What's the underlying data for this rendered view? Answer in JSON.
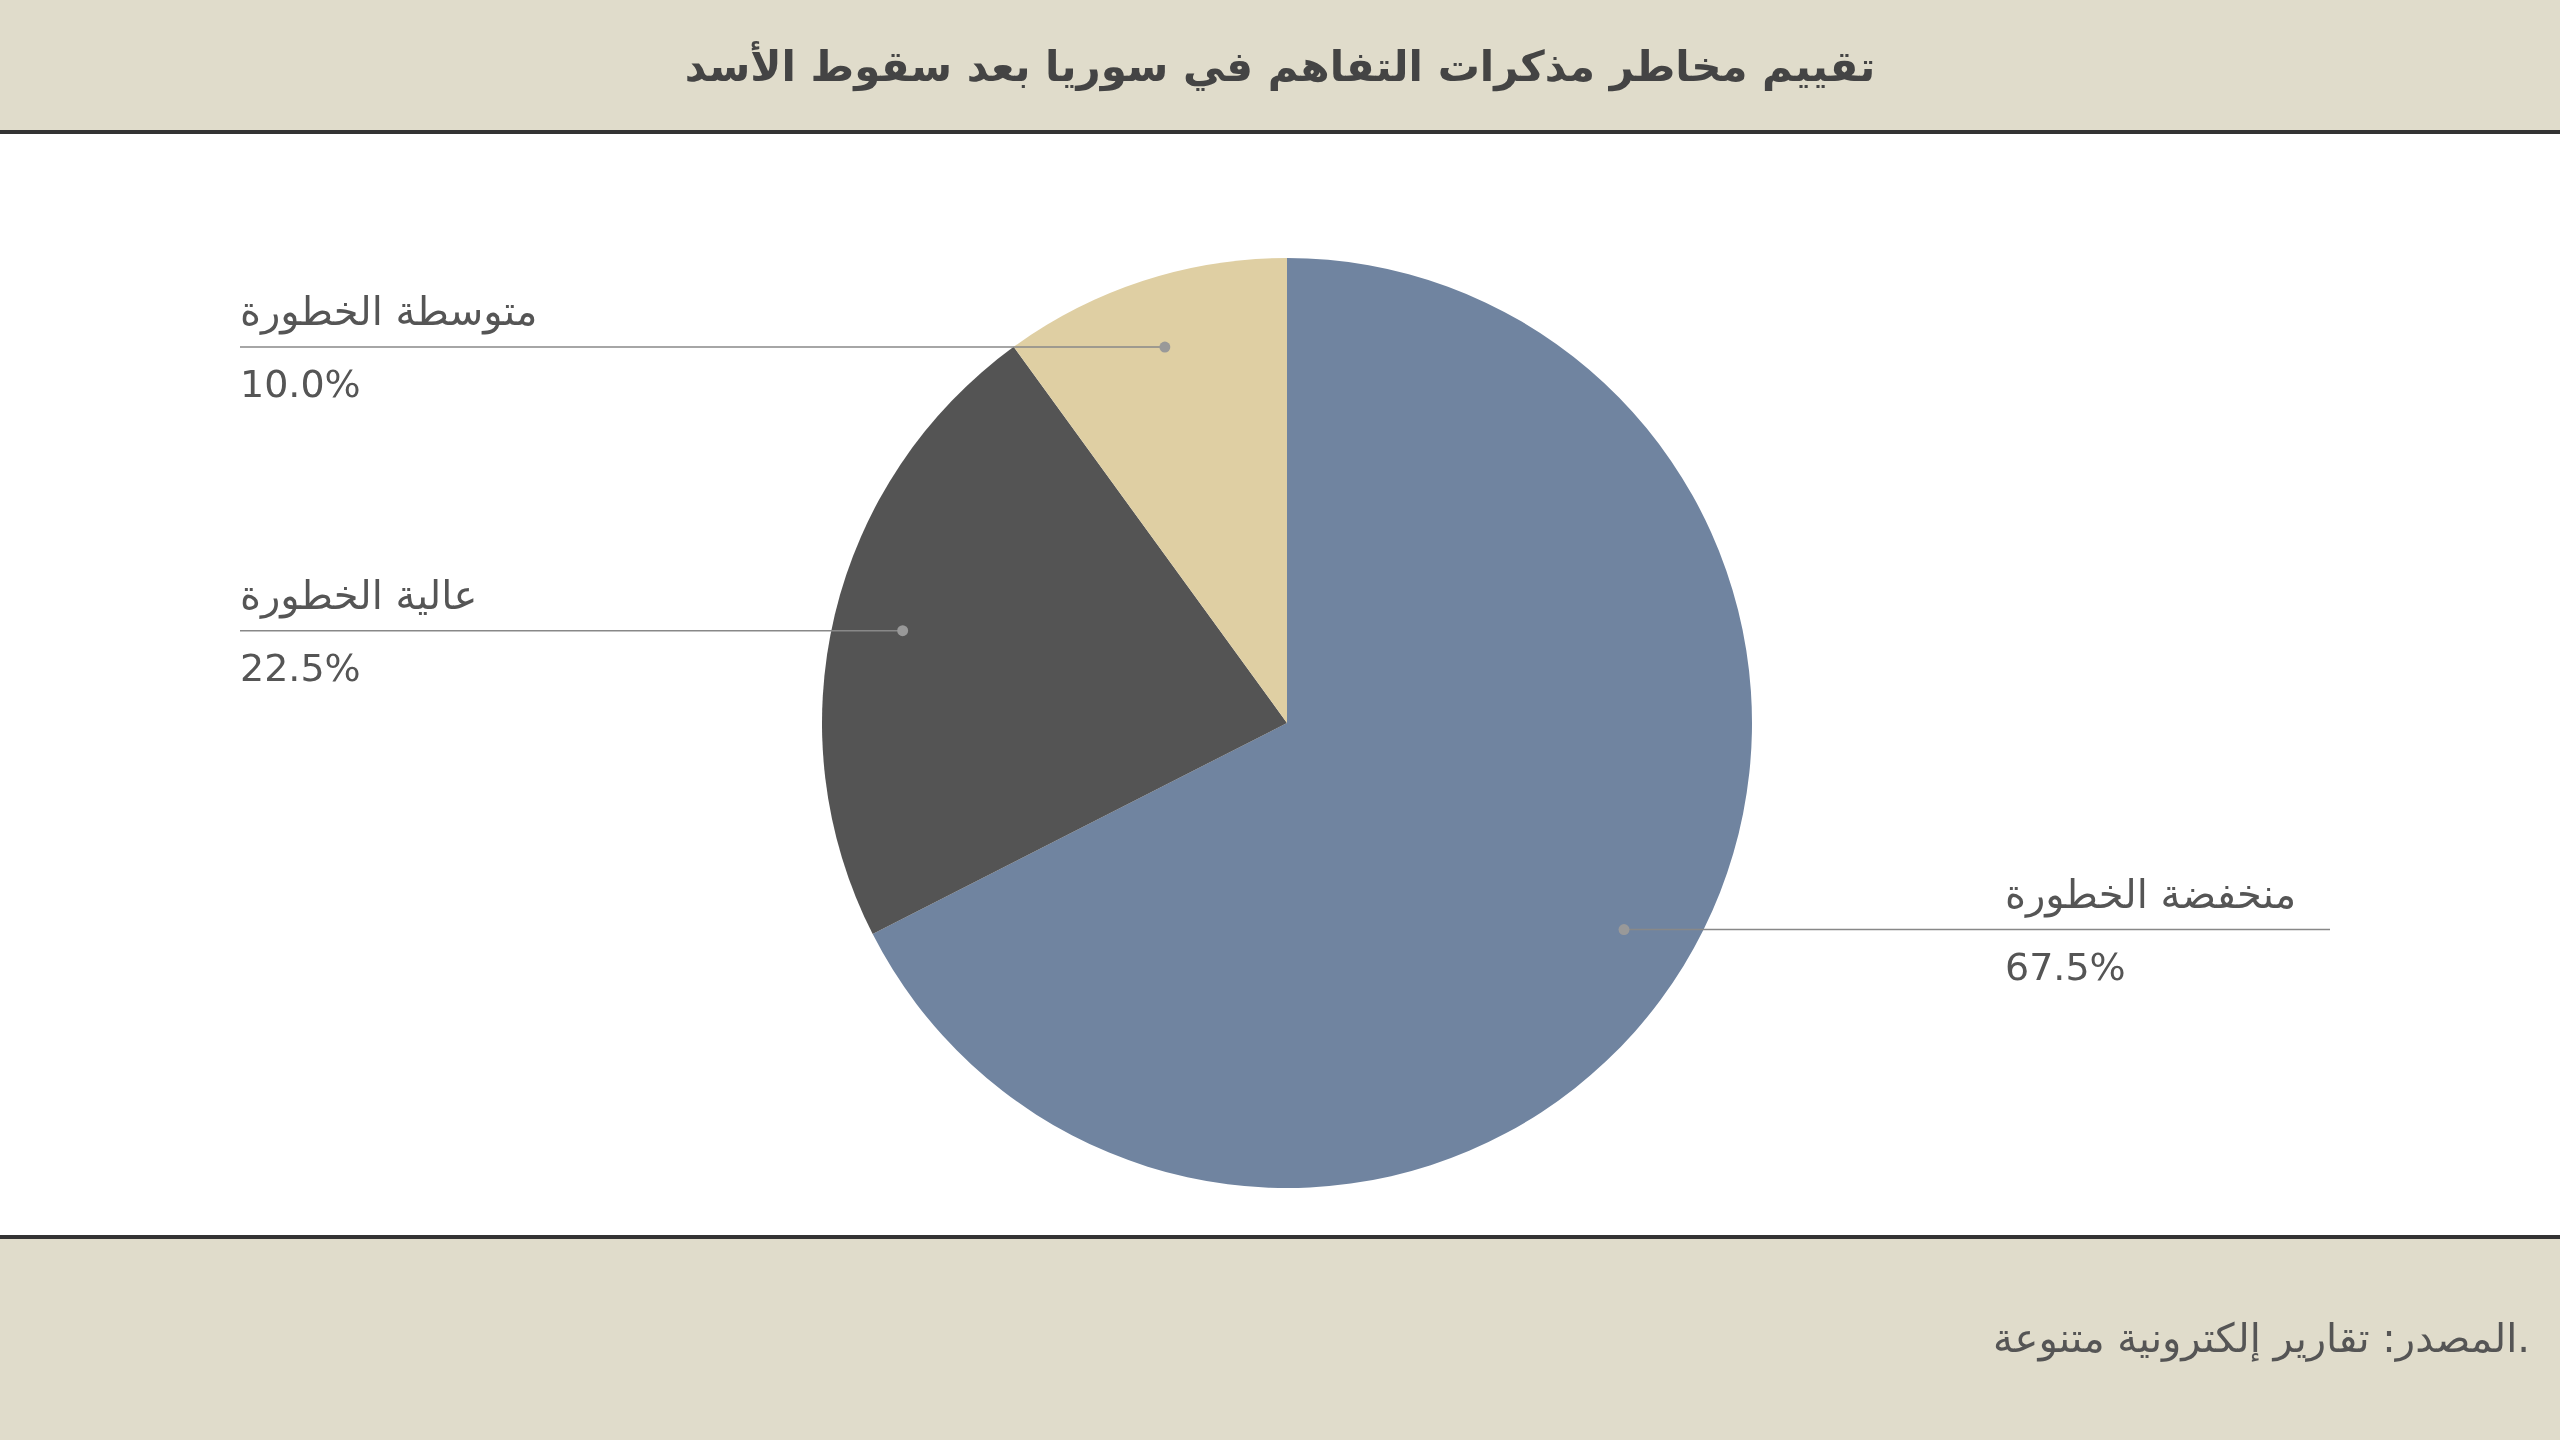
{
  "chart_data": {
    "type": "pie",
    "title": "تقييم مخاطر مذكرات التفاهم في سوريا بعد سقوط الأسد",
    "categories": [
      "منخفضة الخطورة",
      "عالية الخطورة",
      "متوسطة الخطورة"
    ],
    "values": [
      67.5,
      22.5,
      10.0
    ],
    "value_labels": [
      "67.5%",
      "22.5%",
      "10.0%"
    ],
    "colors": [
      "#7084a0",
      "#545454",
      "#dfcfa3"
    ],
    "annotations": [
      "المصدر: تقارير إلكترونية متنوعة."
    ]
  }
}
